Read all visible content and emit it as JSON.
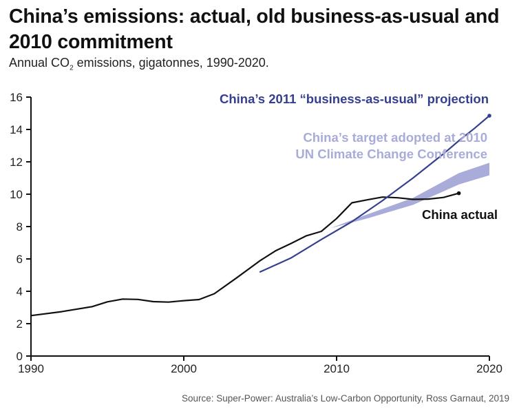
{
  "chart_data": {
    "type": "line",
    "title": "China’s emissions: actual, old business-as-usual and 2010 commitment",
    "subtitle_parts": [
      "Annual CO",
      "2",
      " emissions, gigatonnes, 1990-2020."
    ],
    "source": "Source:  Super-Power: Australia’s Low-Carbon Opportunity, Ross Garnaut, 2019",
    "xlabel": "",
    "ylabel": "",
    "xlim": [
      1990,
      2020
    ],
    "ylim": [
      0,
      16
    ],
    "xticks": [
      1990,
      2000,
      2010,
      2020
    ],
    "yticks": [
      0,
      2,
      4,
      6,
      8,
      10,
      12,
      14,
      16
    ],
    "grid": false,
    "colors": {
      "actual": "#111111",
      "bau": "#353f8f",
      "target": "#a9acd8",
      "axis": "#111111"
    },
    "series": [
      {
        "name": "China actual",
        "label": "China actual",
        "x": [
          1990,
          1992,
          1994,
          1995,
          1996,
          1997,
          1998,
          1999,
          2000,
          2001,
          2002,
          2003.5,
          2005,
          2006,
          2007,
          2008,
          2009,
          2010,
          2011,
          2012,
          2013,
          2014,
          2015,
          2016,
          2017,
          2018
        ],
        "values": [
          2.5,
          2.74,
          3.05,
          3.35,
          3.52,
          3.5,
          3.36,
          3.33,
          3.42,
          3.49,
          3.85,
          4.86,
          5.9,
          6.5,
          6.95,
          7.42,
          7.7,
          8.5,
          9.47,
          9.65,
          9.82,
          9.78,
          9.68,
          9.7,
          9.8,
          10.06
        ],
        "end_marker": true
      },
      {
        "name": "China’s 2011 “business-as-usual” projection",
        "label": "China’s 2011 “business-as-usual” projection",
        "x": [
          2005,
          2007,
          2009,
          2011,
          2013,
          2014,
          2015,
          2016,
          2017,
          2018,
          2019,
          2020
        ],
        "values": [
          5.2,
          6.05,
          7.2,
          8.3,
          9.6,
          10.3,
          11.0,
          11.75,
          12.5,
          13.3,
          14.05,
          14.85
        ],
        "end_marker": true
      }
    ],
    "band": {
      "name": "China’s target adopted at 2010 UN Climate Change Conference",
      "label_lines": [
        "China’s target adopted at 2010",
        "UN Climate Change Conference"
      ],
      "x": [
        2009.6,
        2012,
        2015,
        2018,
        2020
      ],
      "upper": [
        7.9,
        8.75,
        9.77,
        11.3,
        11.94
      ],
      "lower": [
        7.9,
        8.5,
        9.34,
        10.6,
        11.17
      ]
    }
  }
}
